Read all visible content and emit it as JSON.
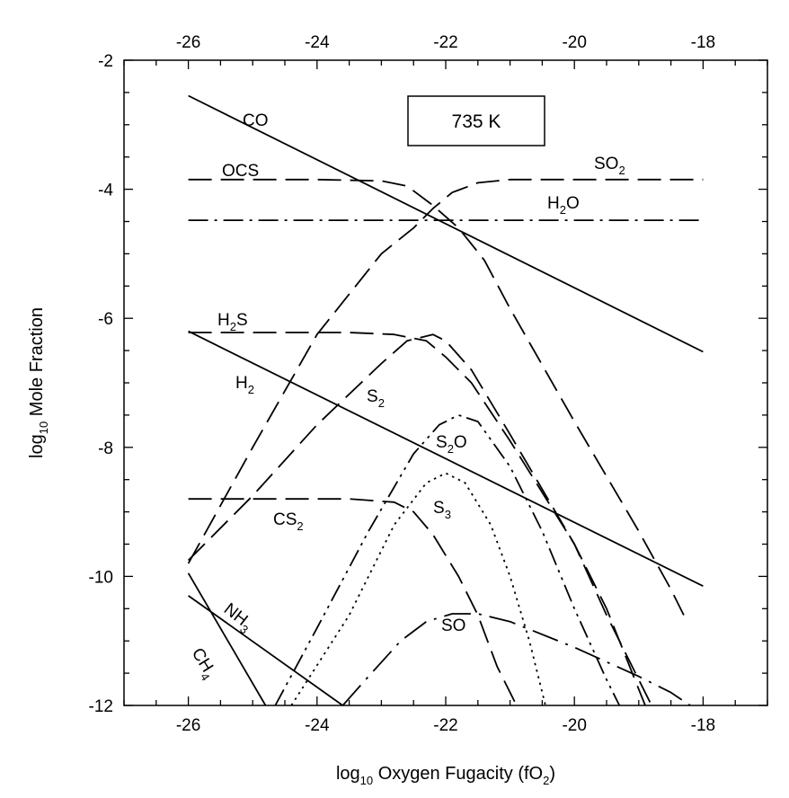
{
  "chart_data": {
    "type": "line",
    "title": "",
    "xlabel": {
      "pre": "log",
      "sub": "10",
      "mid": " Oxygen Fugacity (fO",
      "sub2": "2",
      "post": ")"
    },
    "ylabel": {
      "pre": "log",
      "sub": "10",
      "post": " Mole Fraction"
    },
    "xlim": [
      -27,
      -17
    ],
    "ylim": [
      -12,
      -2
    ],
    "x_ticks_bottom": [
      "-26",
      "-24",
      "-22",
      "-20",
      "-18"
    ],
    "x_ticks_top": [
      "-26",
      "-24",
      "-22",
      "-20",
      "-18"
    ],
    "y_ticks": [
      "-2",
      "-4",
      "-6",
      "-8",
      "-10",
      "-12"
    ],
    "annotation": "735 K",
    "series": [
      {
        "name": "CO",
        "label": {
          "text": "CO",
          "sub": "",
          "post": ""
        },
        "style": "solid",
        "points": [
          [
            -26,
            -2.55
          ],
          [
            -18,
            -6.52
          ]
        ]
      },
      {
        "name": "H2",
        "label": {
          "text": "H",
          "sub": "2",
          "post": ""
        },
        "style": "solid",
        "points": [
          [
            -26,
            -6.2
          ],
          [
            -18,
            -10.15
          ]
        ]
      },
      {
        "name": "NH3",
        "label": {
          "text": "NH",
          "sub": "3",
          "post": ""
        },
        "style": "solid",
        "points": [
          [
            -26,
            -10.3
          ],
          [
            -23.6,
            -12.0
          ]
        ]
      },
      {
        "name": "CH4",
        "label": {
          "text": "CH",
          "sub": "4",
          "post": ""
        },
        "style": "solid",
        "points": [
          [
            -26,
            -9.95
          ],
          [
            -24.8,
            -12.0
          ]
        ]
      },
      {
        "name": "OCS",
        "label": {
          "text": "OCS",
          "sub": "",
          "post": ""
        },
        "style": "dash",
        "points": [
          [
            -26,
            -3.85
          ],
          [
            -24,
            -3.85
          ],
          [
            -23,
            -3.87
          ],
          [
            -22.6,
            -3.95
          ],
          [
            -22.2,
            -4.25
          ],
          [
            -21.8,
            -4.6
          ],
          [
            -21.4,
            -5.1
          ],
          [
            -21,
            -5.85
          ],
          [
            -20,
            -7.6
          ],
          [
            -19,
            -9.3
          ],
          [
            -18.5,
            -10.2
          ],
          [
            -18.3,
            -10.6
          ]
        ]
      },
      {
        "name": "SO2",
        "label": {
          "text": "SO",
          "sub": "2",
          "post": ""
        },
        "style": "dash",
        "points": [
          [
            -26,
            -9.8
          ],
          [
            -25,
            -8.0
          ],
          [
            -24,
            -6.25
          ],
          [
            -23,
            -5.0
          ],
          [
            -22.5,
            -4.6
          ],
          [
            -22.2,
            -4.3
          ],
          [
            -21.9,
            -4.05
          ],
          [
            -21.5,
            -3.9
          ],
          [
            -21,
            -3.85
          ],
          [
            -18,
            -3.85
          ]
        ]
      },
      {
        "name": "H2O",
        "label": {
          "text": "H",
          "sub": "2",
          "post": "O"
        },
        "style": "dashdot",
        "points": [
          [
            -26,
            -4.48
          ],
          [
            -18,
            -4.48
          ]
        ]
      },
      {
        "name": "H2S",
        "label": {
          "text": "H",
          "sub": "2",
          "post": "S"
        },
        "style": "dash",
        "points": [
          [
            -26,
            -6.22
          ],
          [
            -23.5,
            -6.22
          ],
          [
            -22.8,
            -6.25
          ],
          [
            -22.3,
            -6.35
          ],
          [
            -22.0,
            -6.6
          ],
          [
            -21.6,
            -7.0
          ],
          [
            -21,
            -7.9
          ],
          [
            -20,
            -9.5
          ],
          [
            -19.5,
            -10.5
          ],
          [
            -18.9,
            -12.0
          ]
        ]
      },
      {
        "name": "S2",
        "label": {
          "text": "S",
          "sub": "2",
          "post": ""
        },
        "style": "dash",
        "points": [
          [
            -26,
            -9.75
          ],
          [
            -25,
            -8.75
          ],
          [
            -24,
            -7.65
          ],
          [
            -23,
            -6.7
          ],
          [
            -22.6,
            -6.35
          ],
          [
            -22.2,
            -6.25
          ],
          [
            -22.0,
            -6.35
          ],
          [
            -21.6,
            -6.8
          ],
          [
            -21,
            -7.8
          ],
          [
            -20,
            -9.5
          ],
          [
            -19.5,
            -10.6
          ],
          [
            -18.8,
            -12.0
          ]
        ]
      },
      {
        "name": "S2O",
        "label": {
          "text": "S",
          "sub": "2",
          "post": "O"
        },
        "style": "dashdotdot",
        "points": [
          [
            -24.65,
            -12.0
          ],
          [
            -24,
            -10.8
          ],
          [
            -23.2,
            -9.3
          ],
          [
            -22.5,
            -8.1
          ],
          [
            -22.1,
            -7.65
          ],
          [
            -21.8,
            -7.5
          ],
          [
            -21.5,
            -7.6
          ],
          [
            -21,
            -8.3
          ],
          [
            -20.5,
            -9.3
          ],
          [
            -20,
            -10.5
          ],
          [
            -19.5,
            -11.6
          ],
          [
            -19.3,
            -12.0
          ]
        ]
      },
      {
        "name": "S3",
        "label": {
          "text": "S",
          "sub": "3",
          "post": ""
        },
        "style": "dot",
        "points": [
          [
            -24.4,
            -12.0
          ],
          [
            -23.5,
            -10.6
          ],
          [
            -22.8,
            -9.2
          ],
          [
            -22.3,
            -8.55
          ],
          [
            -22.0,
            -8.4
          ],
          [
            -21.7,
            -8.55
          ],
          [
            -21.3,
            -9.2
          ],
          [
            -21,
            -10.0
          ],
          [
            -20.7,
            -11.0
          ],
          [
            -20.45,
            -12.0
          ]
        ]
      },
      {
        "name": "CS2",
        "label": {
          "text": "CS",
          "sub": "2",
          "post": ""
        },
        "style": "dash",
        "points": [
          [
            -26,
            -8.8
          ],
          [
            -23.5,
            -8.8
          ],
          [
            -22.8,
            -8.85
          ],
          [
            -22.5,
            -9.0
          ],
          [
            -22.2,
            -9.35
          ],
          [
            -21.8,
            -10.0
          ],
          [
            -21.5,
            -10.6
          ],
          [
            -21.2,
            -11.4
          ],
          [
            -20.9,
            -12.0
          ]
        ]
      },
      {
        "name": "SO",
        "label": {
          "text": "SO",
          "sub": "",
          "post": ""
        },
        "style": "longdashdot",
        "points": [
          [
            -23.6,
            -12.0
          ],
          [
            -23.2,
            -11.55
          ],
          [
            -22.7,
            -11.0
          ],
          [
            -22.3,
            -10.7
          ],
          [
            -21.9,
            -10.58
          ],
          [
            -21.5,
            -10.58
          ],
          [
            -21,
            -10.7
          ],
          [
            -20,
            -11.1
          ],
          [
            -19,
            -11.55
          ],
          [
            -18.5,
            -11.8
          ],
          [
            -18.2,
            -12.0
          ]
        ]
      }
    ]
  }
}
